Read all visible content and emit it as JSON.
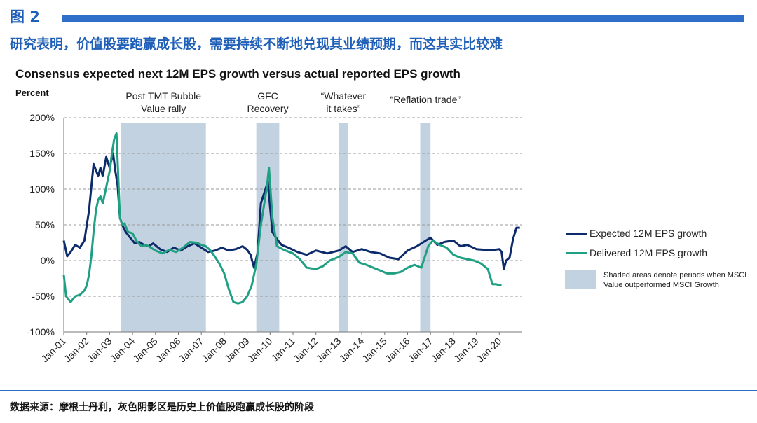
{
  "figure_label": "图 2",
  "headline": "研究表明，价值股要跑赢成长股，需要持续不断地兑现其业绩预期，而这其实比较难",
  "footer": "数据来源：摩根士丹利，灰色阴影区是历史上价值股跑赢成长股的阶段",
  "colors": {
    "brand": "#1f5fb8",
    "expected": "#0d2b6b",
    "delivered": "#1fa083",
    "shade": "#c3d2e0"
  },
  "chart_data": {
    "type": "line",
    "title": "Consensus expected next 12M EPS growth versus actual reported EPS growth",
    "ylabel": "Percent",
    "ylim": [
      -100,
      200
    ],
    "yticks": [
      200,
      150,
      100,
      50,
      0,
      -50,
      -100
    ],
    "ytick_labels": [
      "200%",
      "150%",
      "100%",
      "50%",
      "0%",
      "-50%",
      "-100%"
    ],
    "xlim": [
      2001.0,
      2021.0
    ],
    "xticks": [
      2001,
      2002,
      2003,
      2004,
      2005,
      2006,
      2007,
      2008,
      2009,
      2010,
      2011,
      2012,
      2013,
      2014,
      2015,
      2016,
      2017,
      2018,
      2019,
      2020
    ],
    "xtick_labels": [
      "Jan-01",
      "Jan-02",
      "Jan-03",
      "Jan-04",
      "Jan-05",
      "Jan-06",
      "Jan-07",
      "Jan-08",
      "Jan-09",
      "Jan-10",
      "Jan-11",
      "Jan-12",
      "Jan-13",
      "Jan-14",
      "Jan-15",
      "Jan-16",
      "Jan-17",
      "Jan-18",
      "Jan-19",
      "Jan-20"
    ],
    "grid": "horizontal dashed",
    "legend_position": "right",
    "series": [
      {
        "name": "Expected 12M EPS growth",
        "x": [
          2001.0,
          2001.15,
          2001.3,
          2001.5,
          2001.7,
          2001.9,
          2002.1,
          2002.3,
          2002.5,
          2002.6,
          2002.7,
          2002.85,
          2003.0,
          2003.15,
          2003.25,
          2003.35,
          2003.45,
          2003.55,
          2003.7,
          2003.9,
          2004.1,
          2004.3,
          2004.5,
          2004.7,
          2004.9,
          2005.2,
          2005.5,
          2005.8,
          2006.1,
          2006.4,
          2006.7,
          2007.0,
          2007.3,
          2007.6,
          2007.9,
          2008.2,
          2008.5,
          2008.8,
          2009.0,
          2009.15,
          2009.3,
          2009.45,
          2009.6,
          2009.75,
          2009.9,
          2010.1,
          2010.3,
          2010.5,
          2010.8,
          2011.2,
          2011.6,
          2012.0,
          2012.5,
          2013.0,
          2013.3,
          2013.6,
          2014.0,
          2014.4,
          2014.8,
          2015.2,
          2015.6,
          2016.0,
          2016.4,
          2016.8,
          2017.0,
          2017.3,
          2017.6,
          2018.0,
          2018.3,
          2018.6,
          2019.0,
          2019.4,
          2019.8,
          2020.0,
          2020.1,
          2020.2,
          2020.3,
          2020.45,
          2020.6,
          2020.75,
          2020.9
        ],
        "y": [
          28,
          6,
          12,
          22,
          18,
          28,
          70,
          135,
          118,
          130,
          118,
          145,
          130,
          150,
          125,
          105,
          60,
          50,
          40,
          32,
          24,
          26,
          22,
          20,
          24,
          16,
          12,
          18,
          14,
          20,
          24,
          18,
          12,
          14,
          18,
          14,
          16,
          20,
          15,
          8,
          -10,
          10,
          80,
          95,
          110,
          40,
          30,
          22,
          18,
          12,
          8,
          14,
          10,
          14,
          20,
          12,
          16,
          12,
          10,
          4,
          2,
          14,
          20,
          28,
          32,
          22,
          26,
          28,
          20,
          22,
          16,
          15,
          15,
          16,
          12,
          -12,
          0,
          4,
          30,
          46,
          46
        ]
      },
      {
        "name": "Delivered 12M EPS growth",
        "x": [
          2001.0,
          2001.1,
          2001.3,
          2001.5,
          2001.7,
          2001.9,
          2002.0,
          2002.1,
          2002.2,
          2002.3,
          2002.4,
          2002.5,
          2002.6,
          2002.7,
          2002.8,
          2002.9,
          2003.0,
          2003.1,
          2003.2,
          2003.3,
          2003.45,
          2003.55,
          2003.65,
          2003.8,
          2004.0,
          2004.2,
          2004.4,
          2004.6,
          2004.8,
          2005.0,
          2005.3,
          2005.6,
          2005.9,
          2006.2,
          2006.5,
          2006.8,
          2007.0,
          2007.2,
          2007.4,
          2007.6,
          2007.8,
          2008.0,
          2008.2,
          2008.4,
          2008.6,
          2008.8,
          2009.0,
          2009.2,
          2009.4,
          2009.6,
          2009.75,
          2009.85,
          2009.95,
          2010.1,
          2010.3,
          2010.6,
          2011.0,
          2011.3,
          2011.6,
          2012.0,
          2012.3,
          2012.6,
          2013.0,
          2013.3,
          2013.6,
          2013.9,
          2014.2,
          2014.5,
          2014.8,
          2015.1,
          2015.4,
          2015.7,
          2016.0,
          2016.3,
          2016.6,
          2016.9,
          2017.1,
          2017.4,
          2017.7,
          2018.0,
          2018.3,
          2018.6,
          2018.9,
          2019.2,
          2019.5,
          2019.7,
          2019.85,
          2019.95,
          2020.1
        ],
        "y": [
          -20,
          -50,
          -58,
          -50,
          -48,
          -42,
          -35,
          -20,
          5,
          40,
          70,
          85,
          90,
          80,
          95,
          110,
          125,
          150,
          170,
          178,
          60,
          50,
          52,
          40,
          38,
          26,
          20,
          22,
          18,
          14,
          10,
          15,
          12,
          18,
          26,
          25,
          22,
          20,
          14,
          5,
          -5,
          -18,
          -40,
          -58,
          -60,
          -58,
          -50,
          -35,
          -5,
          50,
          80,
          100,
          130,
          60,
          20,
          15,
          10,
          2,
          -10,
          -12,
          -8,
          0,
          5,
          12,
          10,
          -3,
          -6,
          -10,
          -14,
          -18,
          -18,
          -16,
          -10,
          -6,
          -10,
          20,
          28,
          22,
          18,
          8,
          4,
          2,
          0,
          -4,
          -12,
          -33,
          -33,
          -34,
          -34
        ]
      }
    ],
    "shaded_periods": [
      {
        "label": "Post TMT Bubble\nValue rally",
        "start": 2003.5,
        "end": 2007.2
      },
      {
        "label": "GFC\nRecovery",
        "start": 2009.4,
        "end": 2010.4
      },
      {
        "label": "“Whatever\nit takes”",
        "start": 2013.0,
        "end": 2013.4
      },
      {
        "label": "“Reflation trade”",
        "start": 2016.55,
        "end": 2017.0
      }
    ],
    "legend": {
      "expected": "Expected 12M EPS growth",
      "delivered": "Delivered 12M EPS growth",
      "shaded_note": "Shaded areas denote periods when MSCI Value outperformed MSCI Growth"
    }
  }
}
